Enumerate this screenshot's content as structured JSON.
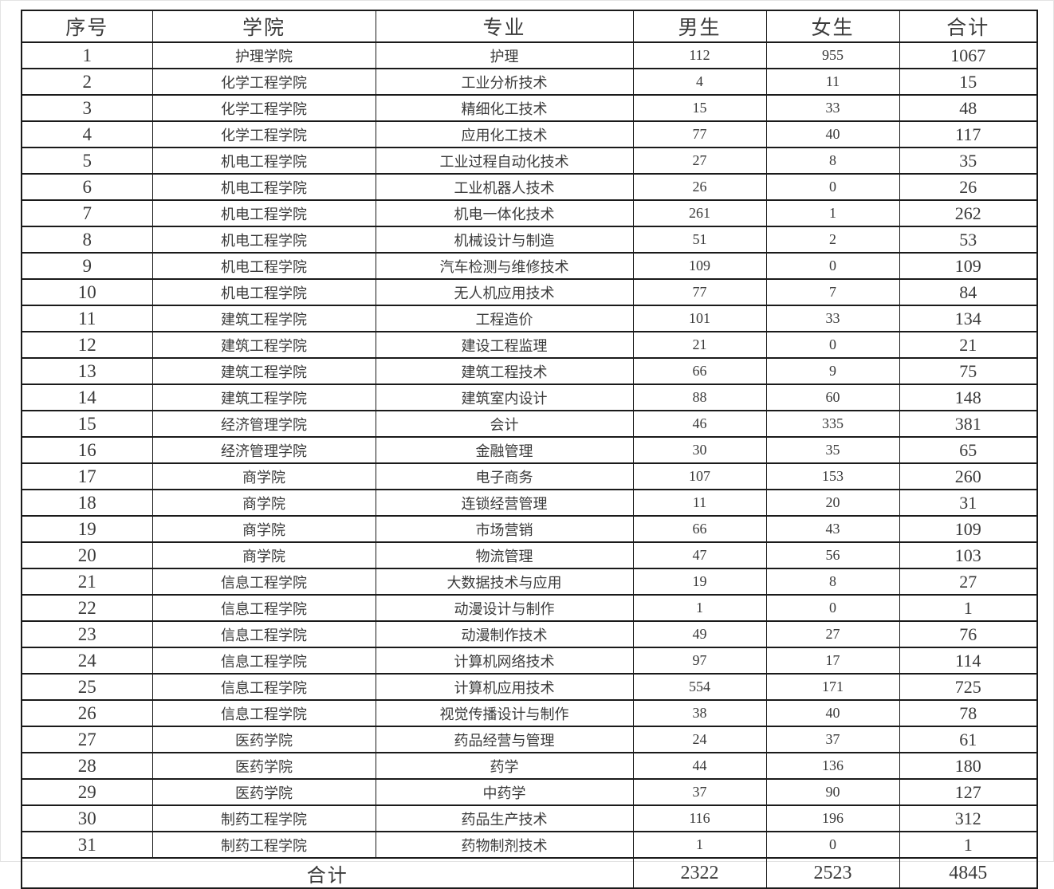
{
  "chart_data": {
    "type": "table",
    "title": "",
    "columns": [
      "序号",
      "学院",
      "专业",
      "男生",
      "女生",
      "合计"
    ],
    "rows": [
      [
        "1",
        "护理学院",
        "护理",
        "112",
        "955",
        "1067"
      ],
      [
        "2",
        "化学工程学院",
        "工业分析技术",
        "4",
        "11",
        "15"
      ],
      [
        "3",
        "化学工程学院",
        "精细化工技术",
        "15",
        "33",
        "48"
      ],
      [
        "4",
        "化学工程学院",
        "应用化工技术",
        "77",
        "40",
        "117"
      ],
      [
        "5",
        "机电工程学院",
        "工业过程自动化技术",
        "27",
        "8",
        "35"
      ],
      [
        "6",
        "机电工程学院",
        "工业机器人技术",
        "26",
        "0",
        "26"
      ],
      [
        "7",
        "机电工程学院",
        "机电一体化技术",
        "261",
        "1",
        "262"
      ],
      [
        "8",
        "机电工程学院",
        "机械设计与制造",
        "51",
        "2",
        "53"
      ],
      [
        "9",
        "机电工程学院",
        "汽车检测与维修技术",
        "109",
        "0",
        "109"
      ],
      [
        "10",
        "机电工程学院",
        "无人机应用技术",
        "77",
        "7",
        "84"
      ],
      [
        "11",
        "建筑工程学院",
        "工程造价",
        "101",
        "33",
        "134"
      ],
      [
        "12",
        "建筑工程学院",
        "建设工程监理",
        "21",
        "0",
        "21"
      ],
      [
        "13",
        "建筑工程学院",
        "建筑工程技术",
        "66",
        "9",
        "75"
      ],
      [
        "14",
        "建筑工程学院",
        "建筑室内设计",
        "88",
        "60",
        "148"
      ],
      [
        "15",
        "经济管理学院",
        "会计",
        "46",
        "335",
        "381"
      ],
      [
        "16",
        "经济管理学院",
        "金融管理",
        "30",
        "35",
        "65"
      ],
      [
        "17",
        "商学院",
        "电子商务",
        "107",
        "153",
        "260"
      ],
      [
        "18",
        "商学院",
        "连锁经营管理",
        "11",
        "20",
        "31"
      ],
      [
        "19",
        "商学院",
        "市场营销",
        "66",
        "43",
        "109"
      ],
      [
        "20",
        "商学院",
        "物流管理",
        "47",
        "56",
        "103"
      ],
      [
        "21",
        "信息工程学院",
        "大数据技术与应用",
        "19",
        "8",
        "27"
      ],
      [
        "22",
        "信息工程学院",
        "动漫设计与制作",
        "1",
        "0",
        "1"
      ],
      [
        "23",
        "信息工程学院",
        "动漫制作技术",
        "49",
        "27",
        "76"
      ],
      [
        "24",
        "信息工程学院",
        "计算机网络技术",
        "97",
        "17",
        "114"
      ],
      [
        "25",
        "信息工程学院",
        "计算机应用技术",
        "554",
        "171",
        "725"
      ],
      [
        "26",
        "信息工程学院",
        "视觉传播设计与制作",
        "38",
        "40",
        "78"
      ],
      [
        "27",
        "医药学院",
        "药品经营与管理",
        "24",
        "37",
        "61"
      ],
      [
        "28",
        "医药学院",
        "药学",
        "44",
        "136",
        "180"
      ],
      [
        "29",
        "医药学院",
        "中药学",
        "37",
        "90",
        "127"
      ],
      [
        "30",
        "制药工程学院",
        "药品生产技术",
        "116",
        "196",
        "312"
      ],
      [
        "31",
        "制药工程学院",
        "药物制剂技术",
        "1",
        "0",
        "1"
      ]
    ],
    "total": {
      "label": "合计",
      "male": "2322",
      "female": "2523",
      "total": "4845"
    }
  },
  "colors": {
    "text": "#3a3a3a",
    "border": "#1a1a1a",
    "page_background": "#ffffff"
  }
}
